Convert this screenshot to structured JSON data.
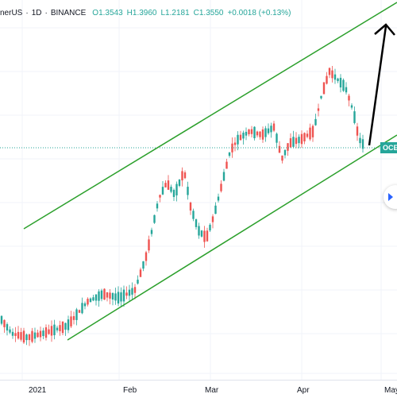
{
  "header": {
    "symbol": "nerUS",
    "interval": "1D",
    "exchange": "BINANCE",
    "open": "O1.3543",
    "high": "H1.3960",
    "low": "L1.2181",
    "close": "C1.3550",
    "change": "+0.0018 (+0.13%)"
  },
  "price_tag": "OCE",
  "xaxis": {
    "labels": [
      "2021",
      "Feb",
      "Mar",
      "Apr",
      "May"
    ]
  },
  "colors": {
    "up": "#26a69a",
    "down": "#ef5350",
    "channel": "#2ca02c",
    "arrow": "#000000",
    "accent": "#2962ff"
  },
  "chart_data": {
    "type": "candlestick",
    "title": "",
    "xlabel": "",
    "ylabel": "",
    "x_ticks": [
      "2021",
      "Feb",
      "Mar",
      "Apr",
      "May"
    ],
    "last_close": 1.355,
    "ohlc_latest": {
      "open": 1.3543,
      "high": 1.396,
      "low": 1.2181,
      "close": 1.355
    },
    "trend_channel": {
      "direction": "ascending",
      "lines": 2
    },
    "annotation": "arrow pointing up from the lower channel line"
  }
}
